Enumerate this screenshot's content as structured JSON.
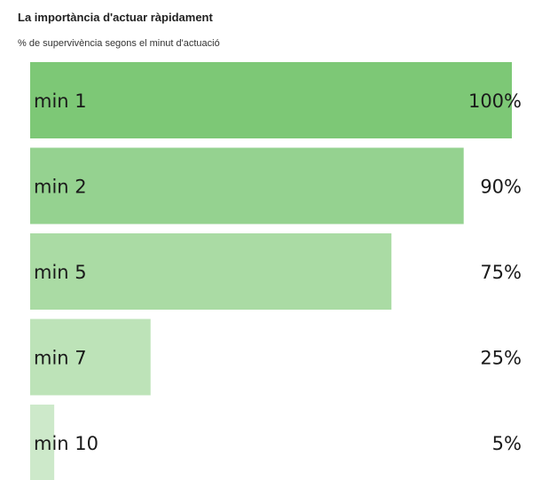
{
  "header": {
    "title": "La importància d'actuar ràpidament",
    "subtitle": "% de supervivència segons el minut d'actuació"
  },
  "chart_data": {
    "type": "bar",
    "orientation": "horizontal",
    "categories": [
      "min 1",
      "min 2",
      "min 5",
      "min 7",
      "min 10"
    ],
    "values": [
      100,
      90,
      75,
      25,
      5
    ],
    "value_labels": [
      "100%",
      "90%",
      "75%",
      "25%",
      "5%"
    ],
    "title": "La importància d'actuar ràpidament",
    "subtitle": "% de supervivència segons el minut d'actuació",
    "xlim": [
      0,
      100
    ],
    "grid": false,
    "legend": "none",
    "colors": [
      "#7dc876",
      "#95d290",
      "#aadba4",
      "#bde3b8",
      "#cde9ca"
    ]
  }
}
